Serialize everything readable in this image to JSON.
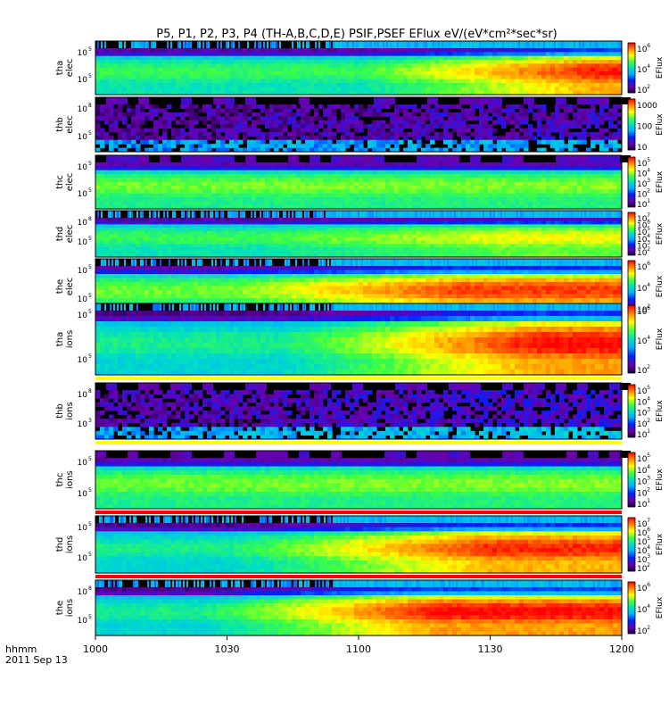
{
  "chart_data": {
    "type": "heatmap",
    "title": "P5, P1, P2, P3, P4 (TH-A,B,C,D,E) PSIF,PSEF EFlux eV/(eV*cm²*sec*sr)",
    "x_axis": {
      "label_line1": "hhmm",
      "label_line2": "2011 Sep 13",
      "ticks": [
        "1000",
        "1030",
        "1100",
        "1130",
        "1200"
      ],
      "range": [
        "10:00",
        "12:00"
      ]
    },
    "colorbar_label": "EFlux",
    "panels": [
      {
        "label": "tha elec",
        "yticks": [
          "10",
          "10"
        ],
        "yexp": [
          "5",
          "5"
        ],
        "cbar_ticks": [
          "10",
          "10",
          "10"
        ],
        "cbar_exp": [
          "6",
          "4",
          "2"
        ],
        "left_level": 0.55,
        "right_level": 0.93,
        "ramp": [
          0.5,
          0.95
        ],
        "top_band": "noisy",
        "bottom_bar": "none"
      },
      {
        "label": "thb elec",
        "yticks": [
          "10",
          "10"
        ],
        "yexp": [
          "8",
          "5"
        ],
        "cbar_ticks": [
          "1000",
          "100",
          "10"
        ],
        "cbar_exp": [
          "",
          "",
          ""
        ],
        "left_level": 0.1,
        "right_level": 0.15,
        "ramp": [
          0.0,
          1.0
        ],
        "top_band": "blocky",
        "bottom_bar": "none"
      },
      {
        "label": "thc elec",
        "yticks": [
          "10",
          "10"
        ],
        "yexp": [
          "5",
          "5"
        ],
        "cbar_ticks": [
          "10",
          "10",
          "10",
          "10",
          "10"
        ],
        "cbar_exp": [
          "5",
          "4",
          "3",
          "2",
          "1"
        ],
        "left_level": 0.6,
        "right_level": 0.62,
        "ramp": [
          0.0,
          1.0
        ],
        "top_band": "blocky",
        "bottom_bar": "none"
      },
      {
        "label": "thd elec",
        "yticks": [
          "10",
          "10"
        ],
        "yexp": [
          "8",
          "5"
        ],
        "cbar_ticks": [
          "10",
          "10",
          "10",
          "10",
          "10",
          "10"
        ],
        "cbar_exp": [
          "7",
          "6",
          "5",
          "4",
          "3",
          "2"
        ],
        "left_level": 0.55,
        "right_level": 0.7,
        "ramp": [
          0.3,
          0.8
        ],
        "top_band": "noisy",
        "bottom_bar": "none"
      },
      {
        "label": "the elec",
        "yticks": [
          "10",
          "10"
        ],
        "yexp": [
          "5",
          "5"
        ],
        "cbar_ticks": [
          "10",
          "10",
          "10"
        ],
        "cbar_exp": [
          "6",
          "4",
          "2"
        ],
        "left_level": 0.6,
        "right_level": 0.9,
        "ramp": [
          0.25,
          0.7
        ],
        "top_band": "noisy",
        "bottom_bar": "red"
      },
      {
        "label": "tha ions",
        "yticks": [
          "10",
          "10"
        ],
        "yexp": [
          "5",
          "5"
        ],
        "cbar_ticks": [
          "10",
          "10",
          "10"
        ],
        "cbar_exp": [
          "6",
          "4",
          "2"
        ],
        "left_level": 0.5,
        "right_level": 0.95,
        "ramp": [
          0.35,
          0.85
        ],
        "top_band": "noisy",
        "bottom_bar": "yellow"
      },
      {
        "label": "thb ions",
        "yticks": [
          "10",
          "10"
        ],
        "yexp": [
          "8",
          "3"
        ],
        "cbar_ticks": [
          "10",
          "10",
          "10",
          "10",
          "10"
        ],
        "cbar_exp": [
          "5",
          "4",
          "3",
          "2",
          "1"
        ],
        "left_level": 0.12,
        "right_level": 0.18,
        "ramp": [
          0.0,
          1.0
        ],
        "top_band": "blocky",
        "bottom_bar": "yellow"
      },
      {
        "label": "thc ions",
        "yticks": [
          "10",
          "10"
        ],
        "yexp": [
          "5",
          "5"
        ],
        "cbar_ticks": [
          "10",
          "10",
          "10",
          "10",
          "10"
        ],
        "cbar_exp": [
          "5",
          "4",
          "3",
          "2",
          "1"
        ],
        "left_level": 0.6,
        "right_level": 0.62,
        "ramp": [
          0.0,
          1.0
        ],
        "top_band": "blocky",
        "bottom_bar": "red"
      },
      {
        "label": "thd ions",
        "yticks": [
          "10",
          "10"
        ],
        "yexp": [
          "5",
          "5"
        ],
        "cbar_ticks": [
          "10",
          "10",
          "10",
          "10",
          "10",
          "10"
        ],
        "cbar_exp": [
          "7",
          "6",
          "5",
          "4",
          "3",
          "2"
        ],
        "left_level": 0.5,
        "right_level": 0.92,
        "ramp": [
          0.25,
          0.75
        ],
        "top_band": "noisy",
        "bottom_bar": "red"
      },
      {
        "label": "the ions",
        "yticks": [
          "10",
          "10"
        ],
        "yexp": [
          "8",
          "5"
        ],
        "cbar_ticks": [
          "10",
          "10",
          "10"
        ],
        "cbar_exp": [
          "6",
          "4",
          "2"
        ],
        "left_level": 0.5,
        "right_level": 0.95,
        "ramp": [
          0.2,
          0.65
        ],
        "top_band": "noisy",
        "bottom_bar": "none"
      }
    ]
  }
}
